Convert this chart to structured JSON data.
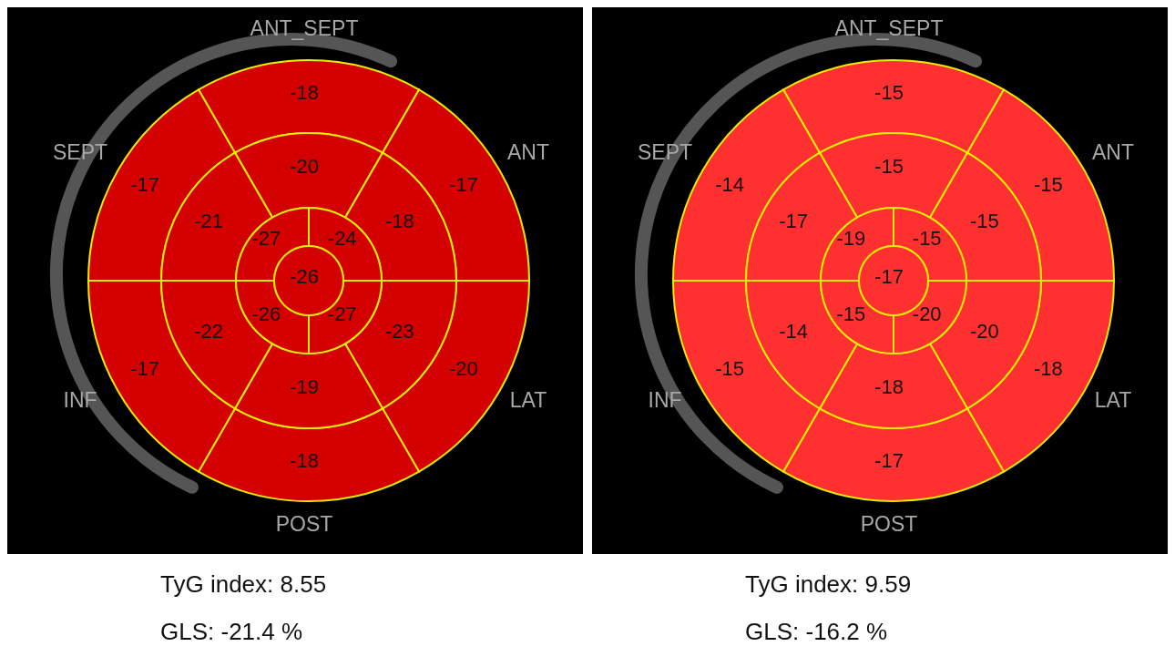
{
  "chart_data": [
    {
      "type": "other",
      "categories": [
        "ANT_SEPT",
        "ANT",
        "LAT",
        "POST",
        "INF",
        "SEPT"
      ],
      "series": [
        {
          "values": [
            -18,
            -17,
            -20,
            -18,
            -17,
            -17
          ],
          "color": "#d40000"
        },
        {
          "values": [
            -20,
            -18,
            -23,
            -19,
            -22,
            -21
          ],
          "color": "#d40000"
        },
        {
          "values": [
            null,
            -24,
            -27,
            null,
            -26,
            -27
          ],
          "color": "#d40000"
        }
      ],
      "data_labels": true,
      "annotations": [
        "-26",
        "TyG index: 8.55",
        "GLS: -21.4 %"
      ]
    },
    {
      "type": "other",
      "categories": [
        "ANT_SEPT",
        "ANT",
        "LAT",
        "POST",
        "INF",
        "SEPT"
      ],
      "series": [
        {
          "values": [
            -15,
            -15,
            -18,
            -17,
            -15,
            -14
          ],
          "color": "#ff3030"
        },
        {
          "values": [
            -15,
            -15,
            -20,
            -18,
            -14,
            -17
          ],
          "color": "#ff3030"
        },
        {
          "values": [
            null,
            -15,
            -20,
            null,
            -15,
            -19
          ],
          "color": "#ff3030"
        }
      ],
      "data_labels": true,
      "annotations": [
        "-17",
        "TyG index: 9.59",
        "GLS: -16.2 %"
      ]
    }
  ]
}
